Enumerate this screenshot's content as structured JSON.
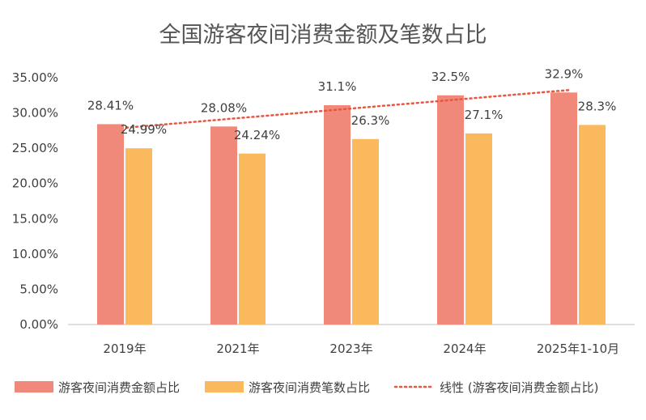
{
  "chart_data": {
    "type": "bar",
    "title": "全国游客夜间消费金额及笔数占比",
    "categories": [
      "2019年",
      "2021年",
      "2023年",
      "2024年",
      "2025年1-10月"
    ],
    "series": [
      {
        "name": "游客夜间消费金额占比",
        "values": [
          28.41,
          28.08,
          31.1,
          32.5,
          32.9
        ],
        "labels": [
          "28.41%",
          "28.08%",
          "31.1%",
          "32.5%",
          "32.9%"
        ],
        "color": "#F0897A"
      },
      {
        "name": "游客夜间消费笔数占比",
        "values": [
          24.99,
          24.24,
          26.3,
          27.1,
          28.3
        ],
        "labels": [
          "24.99%",
          "24.24%",
          "26.3%",
          "27.1%",
          "28.3%"
        ],
        "color": "#F9B95C"
      }
    ],
    "trendline": {
      "name": "线性 (游客夜间消费金额占比)",
      "type": "linear",
      "of_series": "游客夜间消费金额占比",
      "color": "#E8563F",
      "style": "dotted"
    },
    "y_ticks": [
      "0.00%",
      "5.00%",
      "10.00%",
      "15.00%",
      "20.00%",
      "25.00%",
      "30.00%",
      "35.00%"
    ],
    "ylim": [
      0,
      35
    ],
    "grid": false,
    "legend_position": "bottom"
  }
}
